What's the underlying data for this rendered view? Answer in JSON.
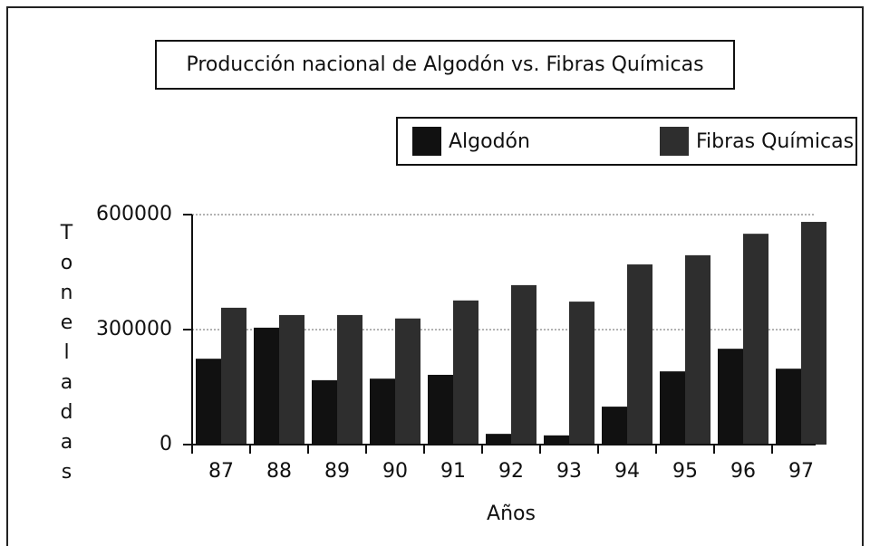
{
  "chart_data": {
    "type": "bar",
    "title": "Producción nacional de Algodón vs. Fibras Químicas",
    "x_label": "Años",
    "y_label": "Toneladas",
    "categories": [
      "87",
      "88",
      "89",
      "90",
      "91",
      "92",
      "93",
      "94",
      "95",
      "96",
      "97"
    ],
    "series": [
      {
        "name": "Algodón",
        "color": "#111111",
        "values": [
          224000,
          305000,
          168000,
          172000,
          182000,
          28000,
          24000,
          99000,
          191000,
          250000,
          198000
        ]
      },
      {
        "name": "Fibras Químicas",
        "color": "#2e2e2e",
        "values": [
          357000,
          338000,
          338000,
          329000,
          376000,
          416000,
          373000,
          470000,
          494000,
          550000,
          581000
        ]
      }
    ],
    "ylim": [
      0,
      600000
    ],
    "yticks": [
      0,
      300000,
      600000
    ],
    "grid": true,
    "legend": "top-right"
  }
}
